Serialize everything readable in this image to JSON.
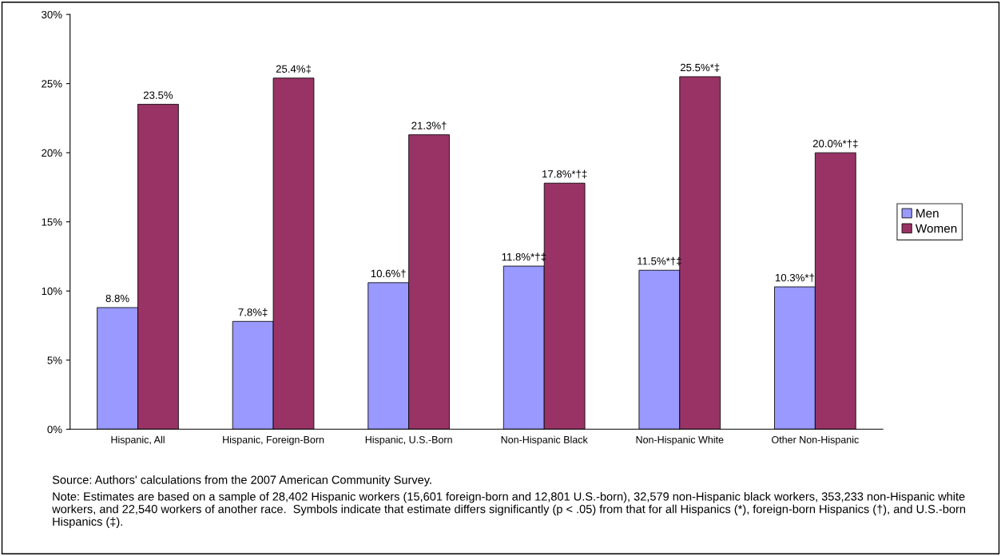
{
  "chart_data": {
    "type": "bar",
    "categories": [
      "Hispanic, All",
      "Hispanic, Foreign-Born",
      "Hispanic, U.S.-Born",
      "Non-Hispanic Black",
      "Non-Hispanic White",
      "Other Non-Hispanic"
    ],
    "series": [
      {
        "name": "Men",
        "color": "#9999ff",
        "values": [
          8.8,
          7.8,
          10.6,
          11.8,
          11.5,
          10.3
        ],
        "value_labels": [
          "8.8%",
          "7.8%‡",
          "10.6%†",
          "11.8%*†‡",
          "11.5%*†‡",
          "10.3%*†"
        ]
      },
      {
        "name": "Women",
        "color": "#993366",
        "values": [
          23.5,
          25.4,
          21.3,
          17.8,
          25.5,
          20.0
        ],
        "value_labels": [
          "23.5%",
          "25.4%‡",
          "21.3%†",
          "17.8%*†‡",
          "25.5%*‡",
          "20.0%*†‡"
        ]
      }
    ],
    "ylim": [
      0,
      30
    ],
    "yticks": [
      {
        "value": 0,
        "label": "0%"
      },
      {
        "value": 5,
        "label": "5%"
      },
      {
        "value": 10,
        "label": "10%"
      },
      {
        "value": 15,
        "label": "15%"
      },
      {
        "value": 20,
        "label": "20%"
      },
      {
        "value": 25,
        "label": "25%"
      },
      {
        "value": 30,
        "label": "30%"
      }
    ],
    "grid": false,
    "legend": "right",
    "annotations": [
      "Source: Authors' calculations from the 2007 American Community Survey.",
      "Note: Estimates are based on a sample of 28,402 Hispanic workers (15,601 foreign-born and 12,801 U.S.-born), 32,579 non-Hispanic black workers, 353,233 non-Hispanic white workers, and 22,540 workers of another race.  Symbols indicate that estimate differs significantly (p < .05) from that for all Hispanics (*), foreign-born Hispanics (†), and U.S.-born Hispanics (‡)."
    ]
  }
}
